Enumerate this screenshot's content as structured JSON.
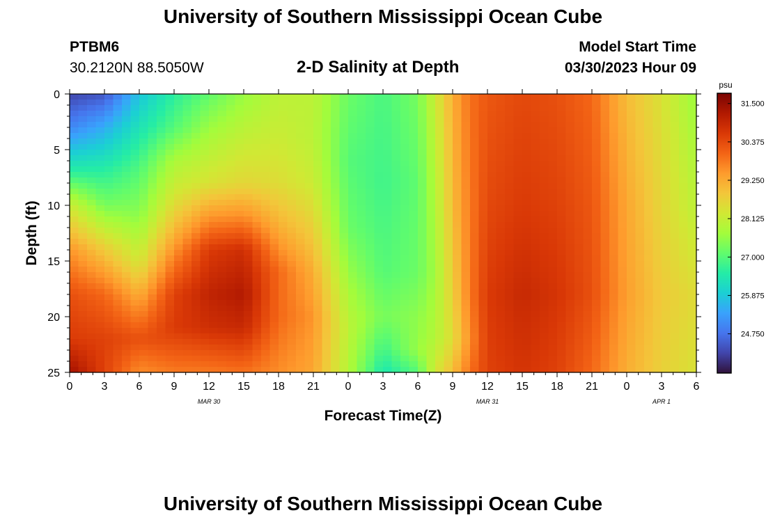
{
  "header": {
    "title": "University of Southern Mississippi Ocean Cube",
    "station": "PTBM6",
    "coords": "30.2120N  88.5050W",
    "model_start_label": "Model Start Time",
    "model_start_value": "03/30/2023 Hour 09"
  },
  "footer": {
    "title": "University of Southern Mississippi Ocean Cube"
  },
  "chart_data": {
    "type": "heatmap",
    "title": "2-D Salinity at Depth",
    "xlabel": "Forecast Time(Z)",
    "ylabel": "Depth (ft)",
    "x_unit": "hours from Mar 30 00Z",
    "xlim": [
      0,
      54
    ],
    "ylim": [
      0,
      25
    ],
    "x_ticks": [
      0,
      3,
      6,
      9,
      12,
      15,
      18,
      21,
      24,
      27,
      30,
      33,
      36,
      39,
      42,
      45,
      48,
      51,
      54
    ],
    "x_tick_labels": [
      "0",
      "3",
      "6",
      "9",
      "12",
      "15",
      "18",
      "21",
      "0",
      "3",
      "6",
      "9",
      "12",
      "15",
      "18",
      "21",
      "0",
      "3",
      "6"
    ],
    "y_ticks": [
      0,
      5,
      10,
      15,
      20,
      25
    ],
    "y_tick_labels": [
      "0",
      "5",
      "10",
      "15",
      "20",
      "25"
    ],
    "date_labels": [
      {
        "text": "MAR 30",
        "x": 12
      },
      {
        "text": "MAR 31",
        "x": 36
      },
      {
        "text": "APR 1",
        "x": 51
      }
    ],
    "colorbar": {
      "unit": "psu",
      "min": 23.6,
      "max": 31.8,
      "ticks": [
        31.5,
        30.375,
        29.25,
        28.125,
        27.0,
        25.875,
        24.75
      ],
      "tick_labels": [
        "31.500",
        "30.375",
        "29.250",
        "28.125",
        "27.000",
        "25.875",
        "24.750"
      ],
      "stops": [
        "#30123b",
        "#4145ab",
        "#4675ed",
        "#39a2fc",
        "#1bcfd4",
        "#24eca6",
        "#61fc6c",
        "#a4fc3b",
        "#d1e834",
        "#f3c63a",
        "#fe9b2d",
        "#f36315",
        "#d93806",
        "#b11901",
        "#7a0402"
      ]
    },
    "depth_profiles": [
      {
        "x": 0,
        "d": [
          0,
          3,
          7,
          10,
          14,
          18,
          22,
          25
        ],
        "v": [
          24.2,
          25.0,
          26.6,
          28.2,
          29.5,
          30.3,
          30.6,
          31.4
        ]
      },
      {
        "x": 3,
        "d": [
          0,
          3,
          7,
          10,
          14,
          18,
          22,
          25
        ],
        "v": [
          24.4,
          25.5,
          26.6,
          27.3,
          28.8,
          30.0,
          30.5,
          30.5
        ]
      },
      {
        "x": 6,
        "d": [
          0,
          4,
          7,
          11,
          15,
          19,
          22,
          25
        ],
        "v": [
          25.8,
          26.5,
          27.0,
          27.5,
          28.3,
          29.5,
          30.3,
          29.6
        ]
      },
      {
        "x": 9,
        "d": [
          0,
          3,
          6,
          9,
          12,
          15,
          18,
          21,
          25
        ],
        "v": [
          26.6,
          27.0,
          27.8,
          28.3,
          29.0,
          29.8,
          30.5,
          30.6,
          29.8
        ]
      },
      {
        "x": 12,
        "d": [
          0,
          4,
          8,
          11,
          14,
          18,
          21,
          25
        ],
        "v": [
          27.1,
          27.8,
          28.4,
          29.5,
          30.6,
          31.0,
          30.8,
          29.8
        ]
      },
      {
        "x": 15,
        "d": [
          0,
          4,
          8,
          11,
          14,
          18,
          21,
          25
        ],
        "v": [
          27.6,
          28.1,
          28.6,
          29.6,
          30.8,
          31.2,
          30.9,
          29.9
        ]
      },
      {
        "x": 18,
        "d": [
          0,
          4,
          8,
          12,
          16,
          20,
          25
        ],
        "v": [
          28.0,
          28.2,
          28.5,
          29.2,
          30.0,
          30.0,
          29.6
        ]
      },
      {
        "x": 21,
        "d": [
          0,
          4,
          8,
          12,
          16,
          20,
          25
        ],
        "v": [
          28.0,
          28.0,
          28.2,
          28.7,
          29.2,
          29.5,
          29.3
        ]
      },
      {
        "x": 24,
        "d": [
          0,
          6,
          12,
          18,
          21,
          25
        ],
        "v": [
          27.2,
          27.0,
          27.2,
          27.8,
          28.0,
          27.9
        ]
      },
      {
        "x": 27,
        "d": [
          0,
          8,
          16,
          20,
          23,
          25
        ],
        "v": [
          26.9,
          26.8,
          27.0,
          27.3,
          26.8,
          26.4
        ]
      },
      {
        "x": 30,
        "d": [
          0,
          8,
          16,
          20,
          23,
          25
        ],
        "v": [
          27.3,
          27.1,
          27.2,
          27.5,
          27.6,
          27.0
        ]
      },
      {
        "x": 31.5,
        "d": [
          0,
          8,
          16,
          22,
          25
        ],
        "v": [
          28.2,
          27.9,
          27.7,
          27.9,
          28.3
        ]
      },
      {
        "x": 33,
        "d": [
          0,
          10,
          18,
          22,
          25
        ],
        "v": [
          29.2,
          29.0,
          28.7,
          28.5,
          29.0
        ]
      },
      {
        "x": 34.5,
        "d": [
          0,
          10,
          18,
          22,
          25
        ],
        "v": [
          29.9,
          29.8,
          29.8,
          29.6,
          29.9
        ]
      },
      {
        "x": 36,
        "d": [
          0,
          10,
          18,
          25
        ],
        "v": [
          30.2,
          30.4,
          30.6,
          30.5
        ]
      },
      {
        "x": 39,
        "d": [
          0,
          10,
          18,
          25
        ],
        "v": [
          30.4,
          30.6,
          30.9,
          30.7
        ]
      },
      {
        "x": 42,
        "d": [
          0,
          10,
          18,
          25
        ],
        "v": [
          30.3,
          30.5,
          30.7,
          30.5
        ]
      },
      {
        "x": 45,
        "d": [
          0,
          10,
          18,
          25
        ],
        "v": [
          30.0,
          30.2,
          30.3,
          30.0
        ]
      },
      {
        "x": 48,
        "d": [
          0,
          10,
          18,
          25
        ],
        "v": [
          29.0,
          29.3,
          29.4,
          29.2
        ]
      },
      {
        "x": 51,
        "d": [
          0,
          10,
          18,
          25
        ],
        "v": [
          28.4,
          28.6,
          28.8,
          28.7
        ]
      },
      {
        "x": 54,
        "d": [
          0,
          10,
          18,
          25
        ],
        "v": [
          27.6,
          28.0,
          28.5,
          28.4
        ]
      }
    ]
  }
}
